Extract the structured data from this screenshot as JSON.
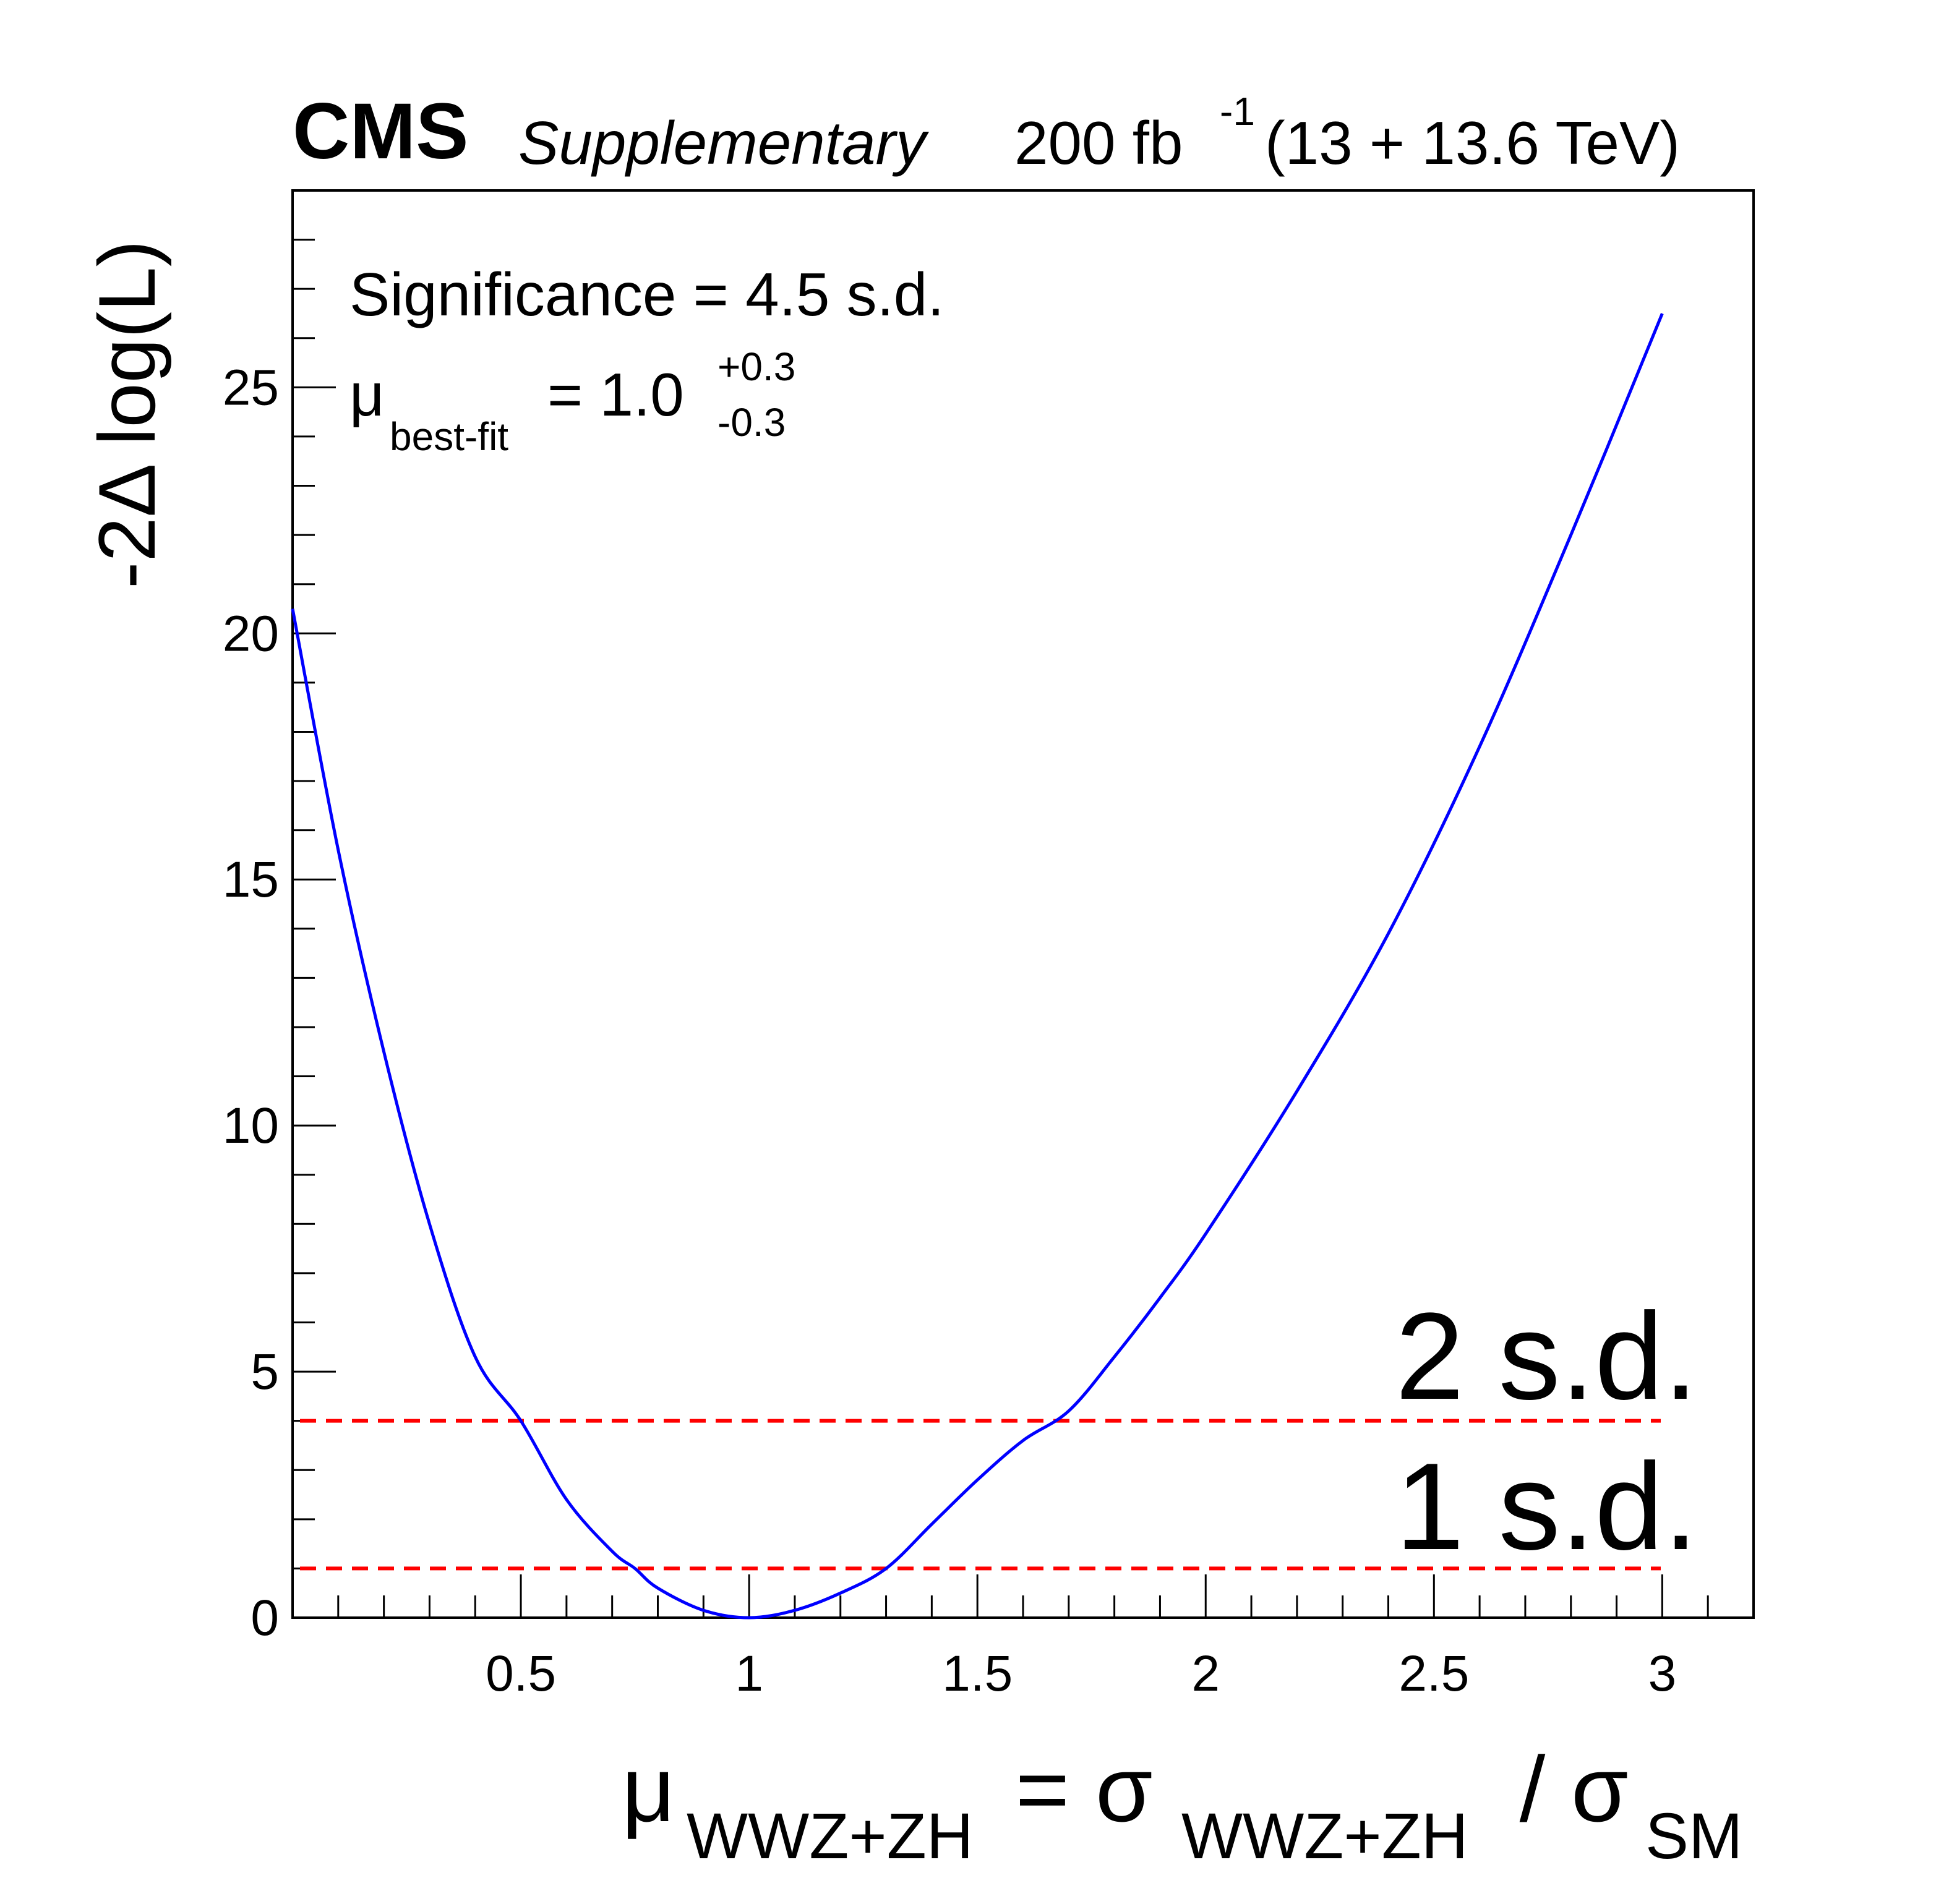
{
  "header": {
    "experiment": "CMS",
    "qualifier": "Supplementary",
    "lumi_value": "200 fb",
    "lumi_exp": "-1",
    "energy": "(13 + 13.6 TeV)"
  },
  "annotations": {
    "significance": "Significance = 4.5 s.d.",
    "mu_symbol": "μ",
    "mu_sub": "best-fit",
    "mu_eq": "= 1.0",
    "mu_up": "+0.3",
    "mu_down": "-0.3",
    "two_sd": "2 s.d.",
    "one_sd": "1 s.d."
  },
  "axes": {
    "ylabel": "-2Δ log(L)",
    "xlabel": {
      "mu": "μ",
      "mu_sub": "WWZ+ZH",
      "eq": " = σ",
      "sigma_sub": "WWZ+ZH",
      "slash": " / σ",
      "sm_sub": "SM"
    }
  },
  "colors": {
    "curve": "#0000ff",
    "threshold": "#ff0000",
    "frame": "#000000"
  },
  "chart_data": {
    "type": "line",
    "xlim": [
      0,
      3.2
    ],
    "ylim": [
      0,
      29
    ],
    "x_ticks": [
      0.5,
      1,
      1.5,
      2,
      2.5,
      3
    ],
    "x_tick_labels": [
      "0.5",
      "1",
      "1.5",
      "2",
      "2.5",
      "3"
    ],
    "y_ticks": [
      0,
      5,
      10,
      15,
      20,
      25
    ],
    "y_tick_labels": [
      "0",
      "5",
      "10",
      "15",
      "20",
      "25"
    ],
    "grid": false,
    "series": [
      {
        "x": [
          0.0,
          0.1,
          0.2,
          0.3,
          0.4,
          0.5,
          0.6,
          0.7,
          0.75,
          0.8,
          0.9,
          1.0,
          1.1,
          1.2,
          1.3,
          1.4,
          1.5,
          1.6,
          1.7,
          1.8,
          1.9,
          2.0,
          2.2,
          2.4,
          2.6,
          2.8,
          3.0
        ],
        "y": [
          20.5,
          15.6,
          11.5,
          8.0,
          5.3,
          4.0,
          2.4,
          1.35,
          1.0,
          0.6,
          0.15,
          0.0,
          0.15,
          0.5,
          1.0,
          1.9,
          2.8,
          3.6,
          4.2,
          5.3,
          6.5,
          7.8,
          10.7,
          13.9,
          17.7,
          22.0,
          26.5
        ]
      }
    ],
    "thresholds": [
      {
        "y": 4,
        "label": "2 s.d."
      },
      {
        "y": 1,
        "label": "1 s.d."
      }
    ]
  }
}
